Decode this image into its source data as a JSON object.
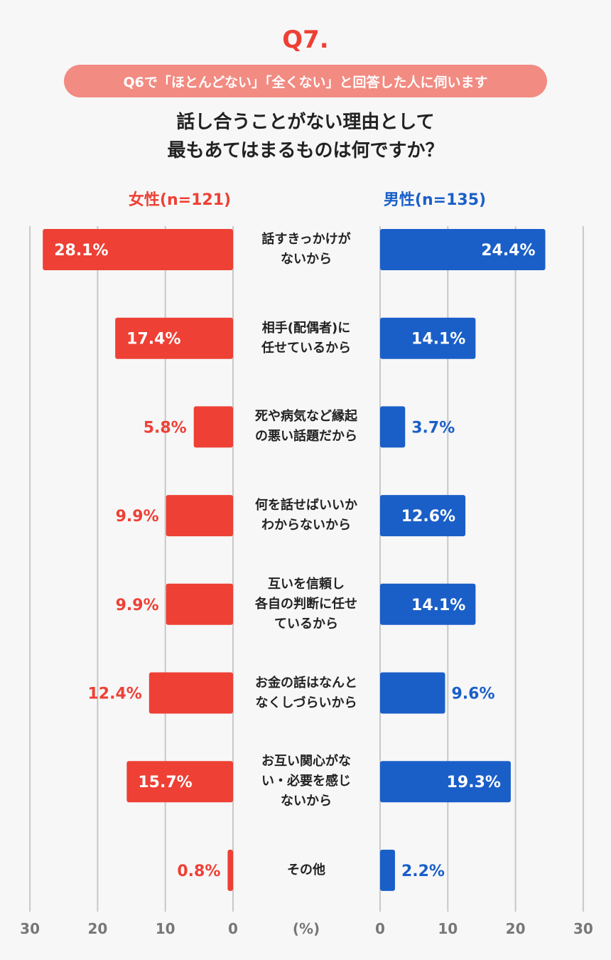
{
  "header": {
    "question_number": "Q7.",
    "condition": "Q6で「ほとんどない」「全くない」と回答した人に伺います",
    "question_line1": "話し合うことがない理由として",
    "question_line2": "最もあてはまるものは何ですか？"
  },
  "colors": {
    "female": "#ee4035",
    "male": "#1a5fc8",
    "grid": "#c8c8c8",
    "axis_text": "#777777"
  },
  "chart_data": {
    "type": "bar",
    "orientation": "horizontal-butterfly",
    "title": "話し合うことがない理由として最もあてはまるものは何ですか？",
    "unit_label": "(%)",
    "xlim": [
      0,
      30
    ],
    "ticks": [
      0,
      10,
      20,
      30
    ],
    "categories": [
      [
        "話すきっかけが",
        "ないから"
      ],
      [
        "相手(配偶者)に",
        "任せているから"
      ],
      [
        "死や病気など縁起",
        "の悪い話題だから"
      ],
      [
        "何を話せばいいか",
        "わからないから"
      ],
      [
        "互いを信頼し",
        "各自の判断に任せ",
        "ているから"
      ],
      [
        "お金の話はなんと",
        "なくしづらいから"
      ],
      [
        "お互い関心がな",
        "い・必要を感じ",
        "ないから"
      ],
      [
        "その他"
      ]
    ],
    "series": [
      {
        "name": "女性(n=121)",
        "side": "left",
        "values": [
          28.1,
          17.4,
          5.8,
          9.9,
          9.9,
          12.4,
          15.7,
          0.8
        ],
        "labels": [
          "28.1%",
          "17.4%",
          "5.8%",
          "9.9%",
          "9.9%",
          "12.4%",
          "15.7%",
          "0.8%"
        ]
      },
      {
        "name": "男性(n=135)",
        "side": "right",
        "values": [
          24.4,
          14.1,
          3.7,
          12.6,
          14.1,
          9.6,
          19.3,
          2.2
        ],
        "labels": [
          "24.4%",
          "14.1%",
          "3.7%",
          "12.6%",
          "14.1%",
          "9.6%",
          "19.3%",
          "2.2%"
        ]
      }
    ]
  }
}
